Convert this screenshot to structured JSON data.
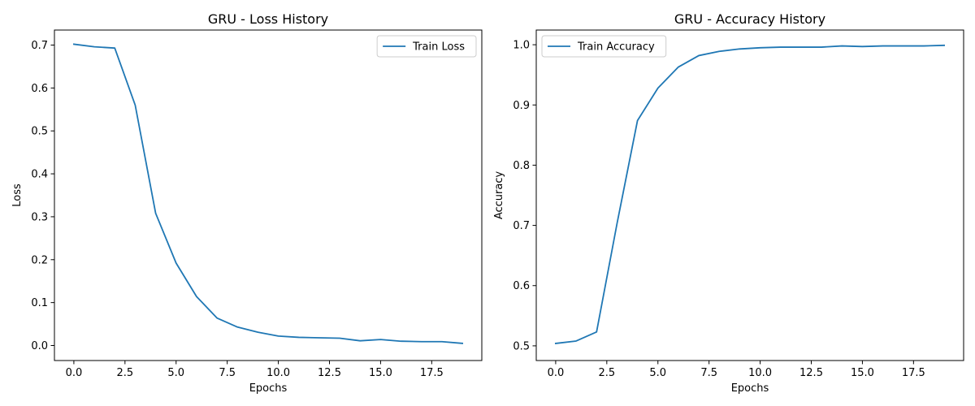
{
  "colors": {
    "series": "#1f77b4"
  },
  "chart_data": [
    {
      "type": "line",
      "title": "GRU - Loss History",
      "xlabel": "Epochs",
      "ylabel": "Loss",
      "xlim": [
        -0.95,
        19.95
      ],
      "ylim": [
        -0.035,
        0.735
      ],
      "xticks": [
        0.0,
        2.5,
        5.0,
        7.5,
        10.0,
        12.5,
        15.0,
        17.5
      ],
      "xtick_labels": [
        "0.0",
        "2.5",
        "5.0",
        "7.5",
        "10.0",
        "12.5",
        "15.0",
        "17.5"
      ],
      "yticks": [
        0.0,
        0.1,
        0.2,
        0.3,
        0.4,
        0.5,
        0.6,
        0.7
      ],
      "ytick_labels": [
        "0.0",
        "0.1",
        "0.2",
        "0.3",
        "0.4",
        "0.5",
        "0.6",
        "0.7"
      ],
      "grid": false,
      "legend_position": "top-right",
      "x": [
        0,
        1,
        2,
        3,
        4,
        5,
        6,
        7,
        8,
        9,
        10,
        11,
        12,
        13,
        14,
        15,
        16,
        17,
        18,
        19
      ],
      "series": [
        {
          "name": "Train Loss",
          "values": [
            0.702,
            0.696,
            0.693,
            0.56,
            0.308,
            0.192,
            0.114,
            0.064,
            0.043,
            0.031,
            0.022,
            0.019,
            0.018,
            0.017,
            0.011,
            0.014,
            0.01,
            0.009,
            0.009,
            0.005
          ]
        }
      ]
    },
    {
      "type": "line",
      "title": "GRU - Accuracy History",
      "xlabel": "Epochs",
      "ylabel": "Accuracy",
      "xlim": [
        -0.95,
        19.95
      ],
      "ylim": [
        0.4756,
        1.0244
      ],
      "xticks": [
        0.0,
        2.5,
        5.0,
        7.5,
        10.0,
        12.5,
        15.0,
        17.5
      ],
      "xtick_labels": [
        "0.0",
        "2.5",
        "5.0",
        "7.5",
        "10.0",
        "12.5",
        "15.0",
        "17.5"
      ],
      "yticks": [
        0.5,
        0.6,
        0.7,
        0.8,
        0.9,
        1.0
      ],
      "ytick_labels": [
        "0.5",
        "0.6",
        "0.7",
        "0.8",
        "0.9",
        "1.0"
      ],
      "grid": false,
      "legend_position": "top-left",
      "x": [
        0,
        1,
        2,
        3,
        4,
        5,
        6,
        7,
        8,
        9,
        10,
        11,
        12,
        13,
        14,
        15,
        16,
        17,
        18,
        19
      ],
      "series": [
        {
          "name": "Train Accuracy",
          "values": [
            0.504,
            0.508,
            0.523,
            0.703,
            0.874,
            0.928,
            0.963,
            0.982,
            0.989,
            0.993,
            0.995,
            0.996,
            0.996,
            0.996,
            0.998,
            0.997,
            0.998,
            0.998,
            0.998,
            0.999
          ]
        }
      ]
    }
  ]
}
